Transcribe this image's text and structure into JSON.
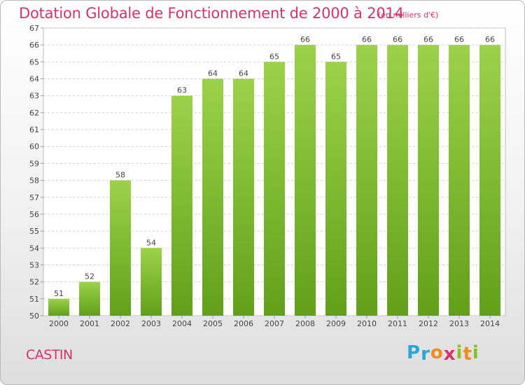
{
  "header": {
    "title": "Dotation Globale de Fonctionnement de 2000 à 2014",
    "unit_note": "(en milliers d'€)"
  },
  "footer": {
    "commune": "CASTIN",
    "logo_letters": [
      "P",
      "r",
      "o",
      "x",
      "i",
      "t",
      "i"
    ],
    "logo_colors": [
      "#2aa7d6",
      "#2aa7d6",
      "#f28c1c",
      "#d6336b",
      "#8cbf26",
      "#f28c1c",
      "#8cbf26"
    ]
  },
  "chart_data": {
    "type": "bar",
    "categories": [
      "2000",
      "2001",
      "2002",
      "2003",
      "2004",
      "2005",
      "2006",
      "2007",
      "2008",
      "2009",
      "2010",
      "2011",
      "2012",
      "2013",
      "2014"
    ],
    "values": [
      51,
      52,
      58,
      54,
      63,
      64,
      64,
      65,
      66,
      65,
      66,
      66,
      66,
      66,
      66
    ],
    "ylim": [
      50,
      67
    ],
    "yticks": [
      50,
      51,
      52,
      53,
      54,
      55,
      56,
      57,
      58,
      59,
      60,
      61,
      62,
      63,
      64,
      65,
      66,
      67
    ],
    "grid": true,
    "bar_color_top": "#9bd24a",
    "bar_color_bottom": "#62a01a",
    "grid_color": "#cfcfcf",
    "text_color": "#444444"
  }
}
